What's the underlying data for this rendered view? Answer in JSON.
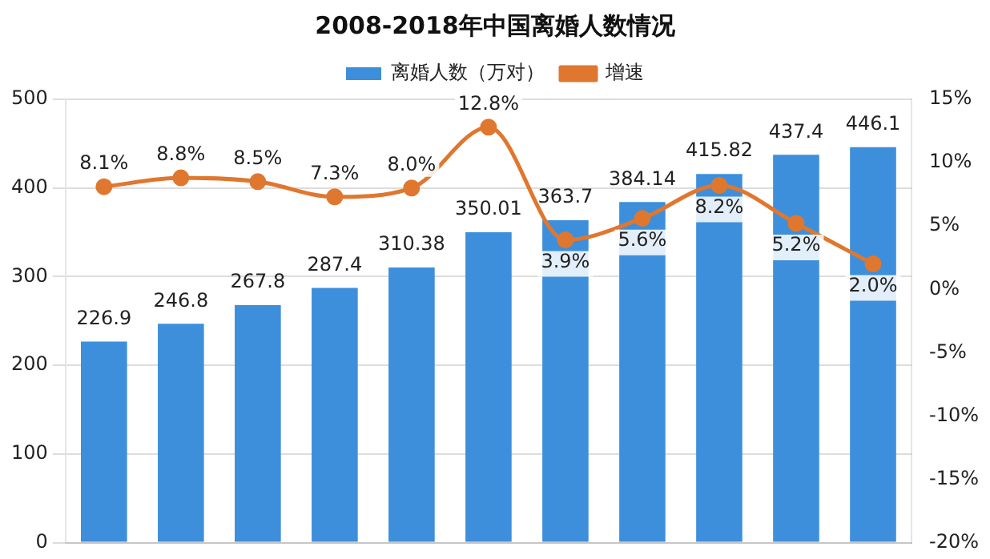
{
  "chart_data": {
    "type": "bar",
    "title": "2008-2018年中国离婚人数情况",
    "categories": [
      null,
      null,
      null,
      null,
      null,
      null,
      null,
      null,
      null,
      null,
      null
    ],
    "series": [
      {
        "name": "离婚人数（万对）",
        "color": "#3d8fdc",
        "values": [
          226.9,
          246.8,
          267.8,
          287.4,
          310.38,
          350.01,
          363.7,
          384.14,
          415.82,
          437.4,
          446.1
        ],
        "value_labels": [
          "226.9",
          "246.8",
          "267.8",
          "287.4",
          "310.38",
          "350.01",
          "363.7",
          "384.14",
          "415.82",
          "437.4",
          "446.1"
        ]
      },
      {
        "name": "增速",
        "type": "line",
        "axis": "y2",
        "color": "#e0772f",
        "values": [
          8.1,
          8.8,
          8.5,
          7.3,
          8.0,
          12.8,
          3.9,
          5.6,
          8.2,
          5.2,
          2.0
        ],
        "value_labels": [
          "8.1%",
          "8.8%",
          "8.5%",
          "7.3%",
          "8.0%",
          "12.8%",
          "3.9%",
          "5.6%",
          "8.2%",
          "5.2%",
          "2.0%"
        ]
      }
    ],
    "ylim": [
      0,
      500
    ],
    "yticks": [
      0,
      100,
      200,
      300,
      400,
      500
    ],
    "y2lim": [
      -20,
      15
    ],
    "y2ticks": [
      {
        "value": -20,
        "label": "-20%"
      },
      {
        "value": -15,
        "label": "-15%"
      },
      {
        "value": -10,
        "label": "-10%"
      },
      {
        "value": -5,
        "label": "-5%"
      },
      {
        "value": 0,
        "label": "0%"
      },
      {
        "value": 5,
        "label": "5%"
      },
      {
        "value": 10,
        "label": "10%"
      },
      {
        "value": 15,
        "label": "15%"
      }
    ],
    "grid": "y",
    "legend": "top",
    "marker": "circle",
    "line_style": "solid"
  }
}
